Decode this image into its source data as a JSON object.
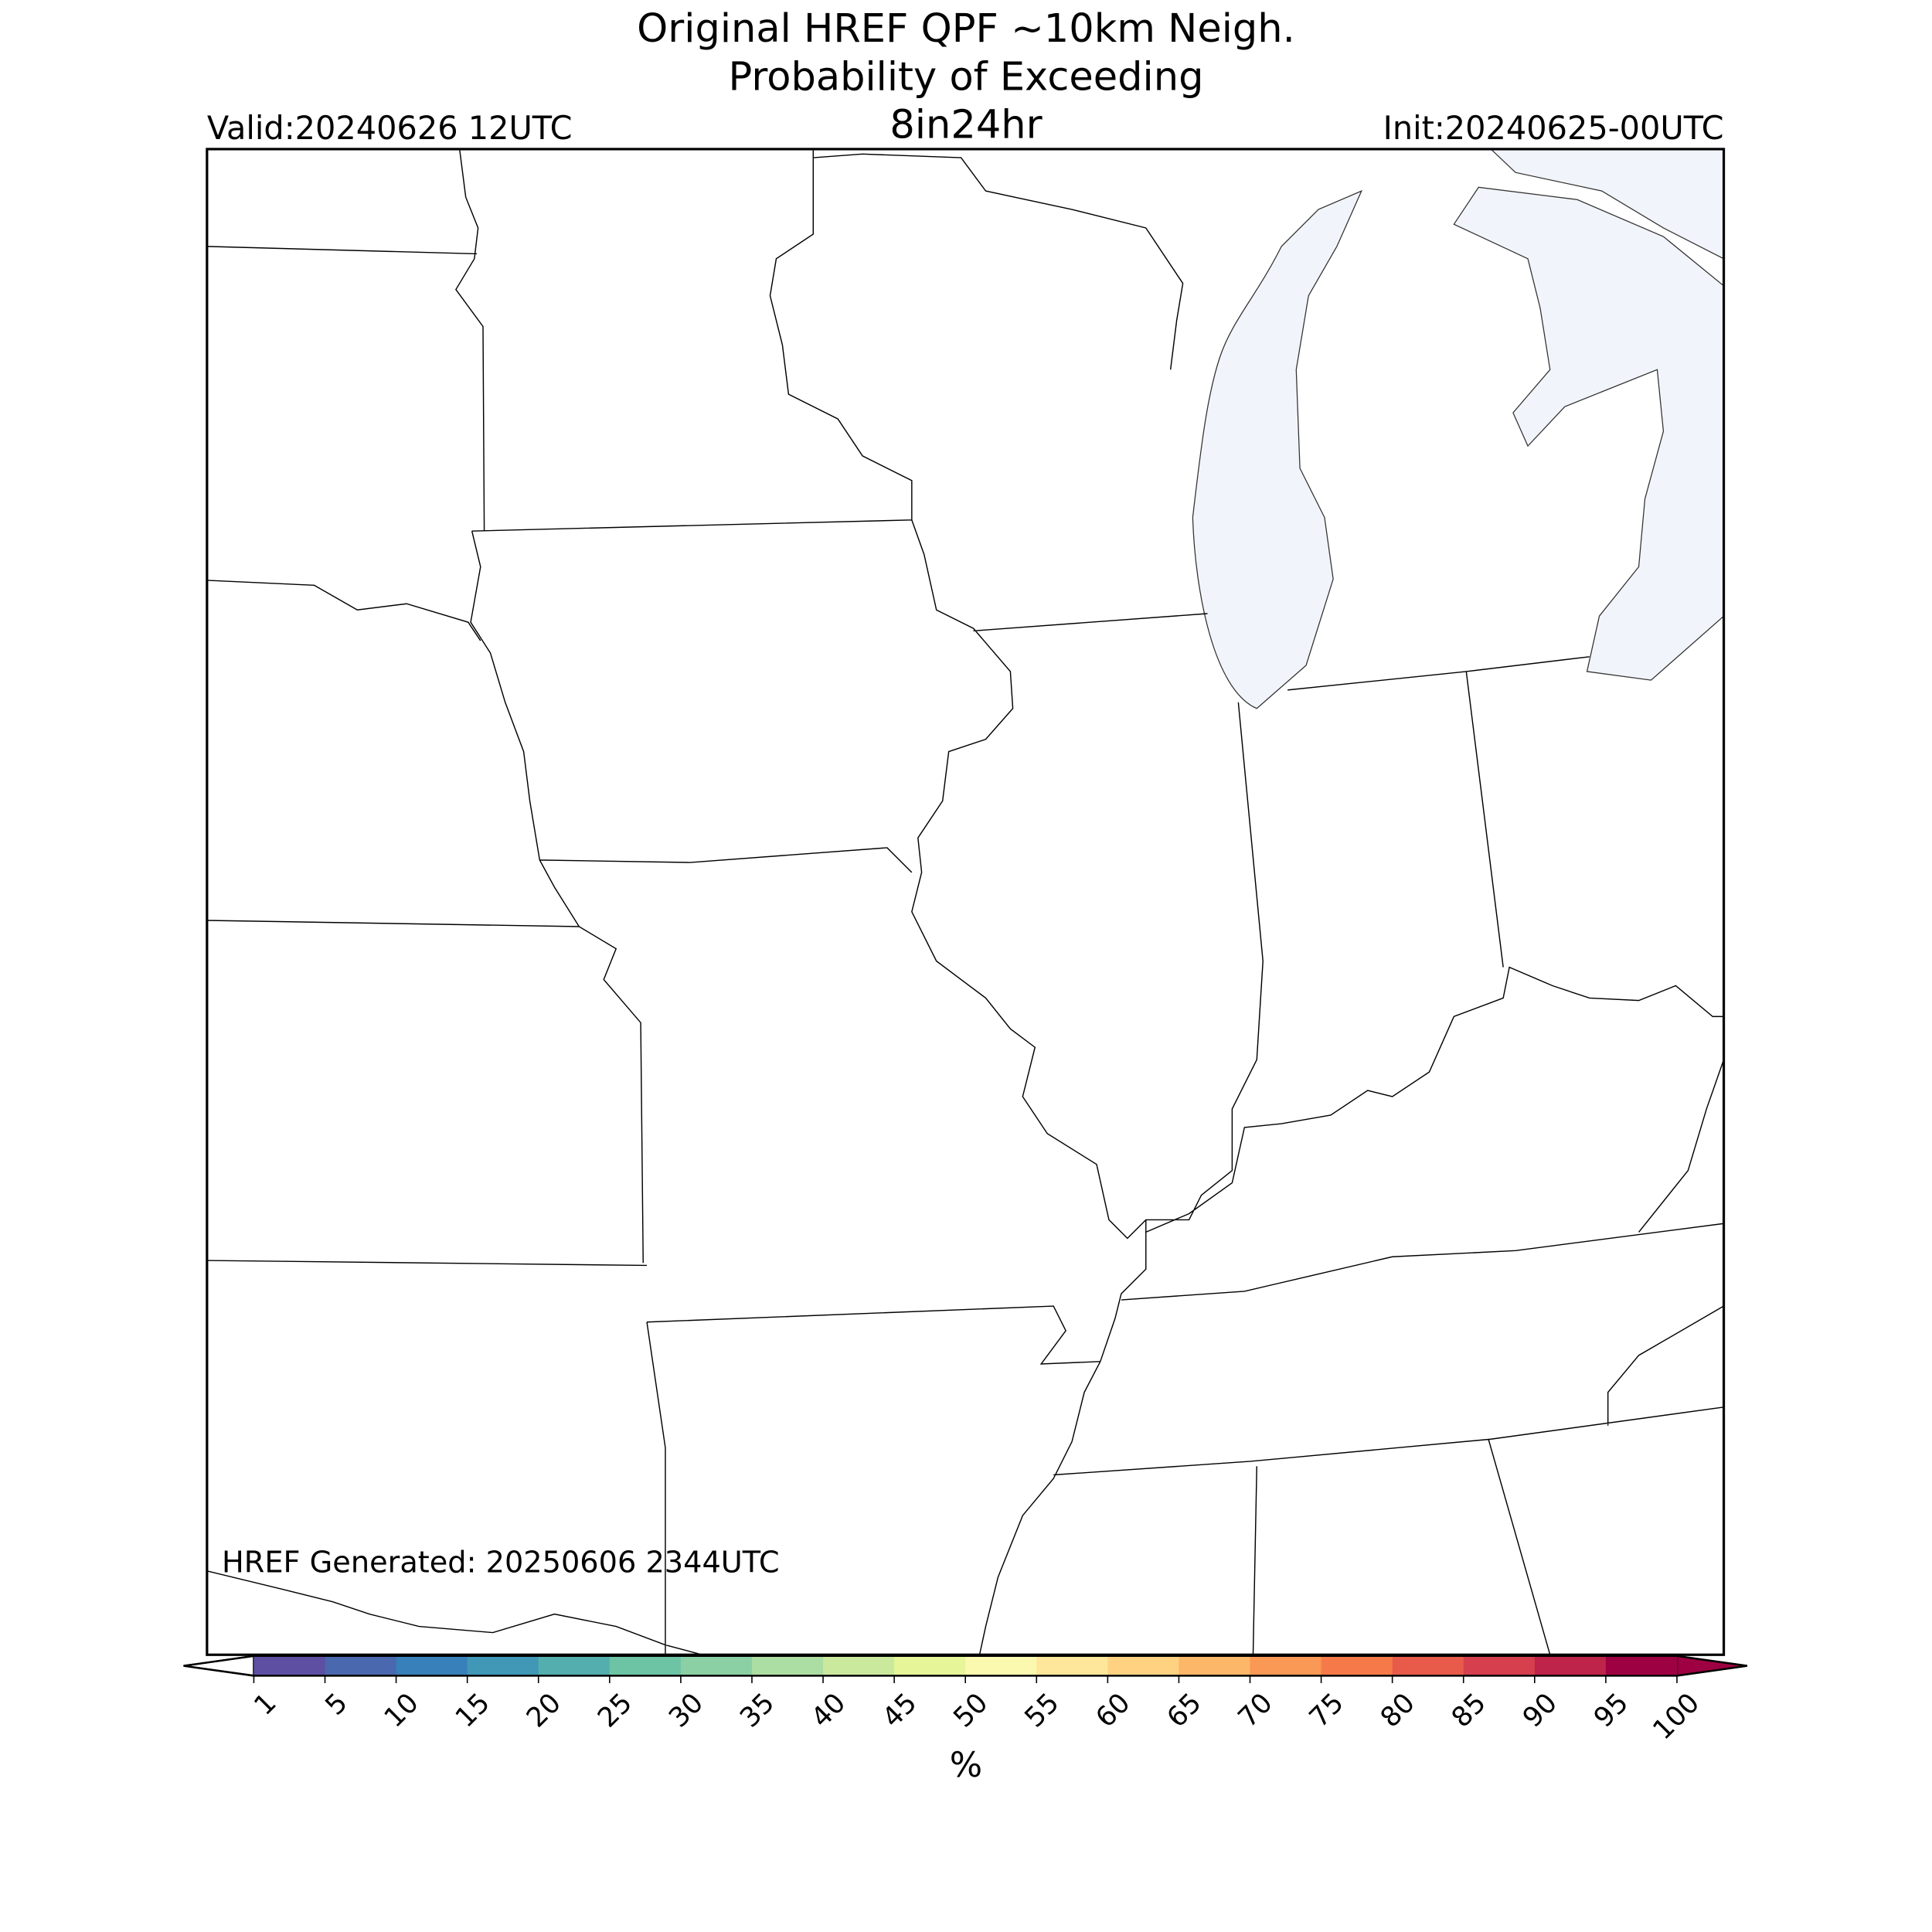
{
  "title": [
    "Original HREF QPF ~10km Neigh.",
    "Probability of Exceeding",
    "8in24hr"
  ],
  "valid": "Valid:20240626 12UTC",
  "init": "Init:20240625-00UTC",
  "generated": "HREF Generated: 20250606 2344UTC",
  "colorbar": {
    "ticks": [
      1,
      5,
      10,
      15,
      20,
      25,
      30,
      35,
      40,
      45,
      50,
      55,
      60,
      65,
      70,
      75,
      80,
      85,
      90,
      95,
      100
    ],
    "colors": [
      "#5e4fa2",
      "#4a68ad",
      "#3880b9",
      "#4198b6",
      "#54aead",
      "#6cc4a4",
      "#8ad0a4",
      "#acdda2",
      "#cbe99d",
      "#e6f598",
      "#fbf8b0",
      "#fee79a",
      "#fed281",
      "#fdb768",
      "#fa9856",
      "#f67a49",
      "#e85b4a",
      "#d6404e",
      "#be2449",
      "#9e0142"
    ],
    "under_color": "#ffffff",
    "over_color": "#9e0142",
    "label": "%"
  }
}
